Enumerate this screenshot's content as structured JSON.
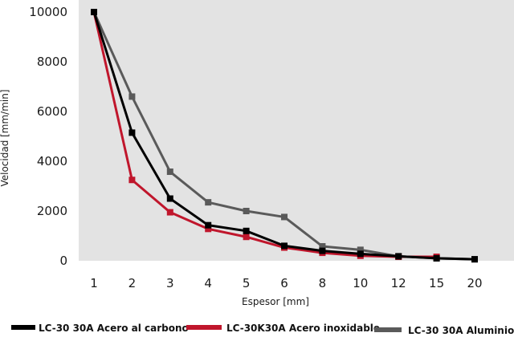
{
  "chart_data": {
    "type": "line",
    "title": "",
    "xlabel": "Espesor [mm]",
    "ylabel": "Velocidad [mm/min]",
    "categories": [
      "1",
      "2",
      "3",
      "4",
      "5",
      "6",
      "8",
      "10",
      "12",
      "15",
      "20"
    ],
    "ylim": [
      0,
      10000
    ],
    "yticks": [
      "0",
      "2000",
      "4000",
      "6000",
      "8000",
      "10000"
    ],
    "grid": false,
    "legend_position": "bottom",
    "plot_background": "#e3e3e3",
    "series": [
      {
        "name": "LC-30 30A Acero al carbono",
        "color": "#000000",
        "values": [
          10000,
          5150,
          2500,
          1430,
          1200,
          600,
          400,
          280,
          180,
          100,
          60
        ]
      },
      {
        "name": "LC-30K30A Acero inoxidable",
        "color": "#c0162c",
        "values": [
          10000,
          3250,
          1950,
          1280,
          960,
          530,
          320,
          200,
          160,
          160,
          null
        ]
      },
      {
        "name": "LC-30 30A Aluminio",
        "color": "#5a5a5a",
        "values": [
          10000,
          6600,
          3580,
          2350,
          2000,
          1760,
          580,
          440,
          180,
          100,
          60
        ]
      }
    ]
  }
}
